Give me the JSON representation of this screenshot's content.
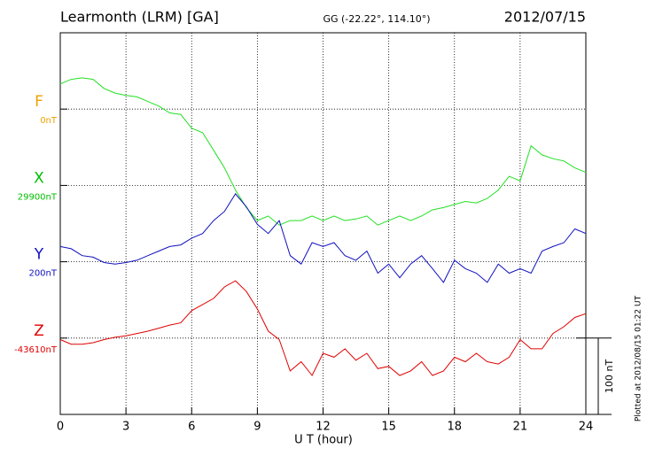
{
  "chart_data": {
    "type": "line",
    "title": "Learmonth (LRM)  [GA]",
    "subtitle": "GG (-22.22°, 114.10°)",
    "date": "2012/07/15",
    "x_label": "U T (hour)",
    "footnote": "Plotted at 2012/08/15 01:22 UT",
    "scale_bar": {
      "value": 100,
      "label": "100 nT"
    },
    "xlim": [
      0,
      24
    ],
    "xticks": [
      0,
      3,
      6,
      9,
      12,
      15,
      18,
      21,
      24
    ],
    "ylim": [
      0,
      500
    ],
    "yticks": [
      100,
      200,
      300,
      400
    ],
    "grid": true,
    "x": [
      0,
      0.5,
      1,
      1.5,
      2,
      2.5,
      3,
      3.5,
      4,
      4.5,
      5,
      5.5,
      6,
      6.5,
      7,
      7.5,
      8,
      8.5,
      9,
      9.5,
      10,
      10.5,
      11,
      11.5,
      12,
      12.5,
      13,
      13.5,
      14,
      14.5,
      15,
      15.5,
      16,
      16.5,
      17,
      17.5,
      18,
      18.5,
      19,
      19.5,
      20,
      20.5,
      21,
      21.5,
      22,
      22.5,
      23,
      23.5,
      24
    ],
    "series": [
      {
        "name": "F",
        "color": "#f0a000",
        "base": 0,
        "base_label": "0nT"
      },
      {
        "name": "X",
        "color": "#00c000",
        "line_color": "#22e022",
        "base": 29900,
        "base_label": "29900nT",
        "values": [
          30033,
          30039,
          30041,
          30039,
          30027,
          30021,
          30018,
          30016,
          30010,
          30004,
          29995,
          29993,
          29975,
          29969,
          29946,
          29923,
          29894,
          29871,
          29854,
          29860,
          29848,
          29854,
          29854,
          29860,
          29854,
          29860,
          29854,
          29856,
          29860,
          29848,
          29854,
          29860,
          29854,
          29860,
          29868,
          29871,
          29875,
          29879,
          29877,
          29883,
          29894,
          29912,
          29906,
          29952,
          29940,
          29935,
          29932,
          29923,
          29917
        ]
      },
      {
        "name": "Y",
        "color": "#1010c0",
        "line_color": "#1010c0",
        "base": 200,
        "base_label": "200nT",
        "values": [
          220,
          217,
          208,
          206,
          199,
          197,
          199,
          202,
          208,
          214,
          220,
          222,
          231,
          237,
          254,
          266,
          289,
          272,
          249,
          237,
          254,
          208,
          197,
          225,
          220,
          225,
          208,
          202,
          214,
          185,
          197,
          179,
          197,
          208,
          191,
          173,
          202,
          191,
          185,
          173,
          197,
          185,
          191,
          185,
          214,
          220,
          225,
          243,
          237
        ]
      },
      {
        "name": "Z",
        "color": "#e00000",
        "line_color": "#e00000",
        "base": -43610,
        "base_label": "-43610nT",
        "values": [
          -43612,
          -43618,
          -43618,
          -43616,
          -43612,
          -43609,
          -43607,
          -43604,
          -43601,
          -43597,
          -43593,
          -43590,
          -43574,
          -43566,
          -43558,
          -43543,
          -43535,
          -43549,
          -43572,
          -43601,
          -43612,
          -43653,
          -43641,
          -43659,
          -43630,
          -43635,
          -43624,
          -43639,
          -43630,
          -43650,
          -43647,
          -43659,
          -43653,
          -43641,
          -43659,
          -43653,
          -43635,
          -43641,
          -43630,
          -43641,
          -43644,
          -43635,
          -43612,
          -43624,
          -43624,
          -43604,
          -43595,
          -43583,
          -43578
        ]
      }
    ]
  }
}
